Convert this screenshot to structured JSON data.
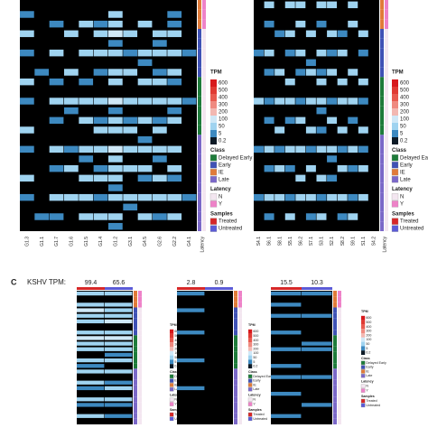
{
  "legend": {
    "tpm_title": "TPM",
    "tpm_ticks": [
      600,
      500,
      400,
      300,
      200,
      100,
      50,
      5,
      0.2
    ],
    "tpm_colors": [
      "#d7191c",
      "#e03a33",
      "#e85a4f",
      "#ef8a80",
      "#f2b8b2",
      "#cfe8f7",
      "#9fd3f0",
      "#3d89c0",
      "#0d1a26"
    ],
    "low_color": "#000000",
    "class_title": "Class",
    "classes": [
      {
        "name": "Delayed Early",
        "color": "#1e7b3a"
      },
      {
        "name": "Early",
        "color": "#3f51b5"
      },
      {
        "name": "IE",
        "color": "#e07b39"
      },
      {
        "name": "Late",
        "color": "#7b68c8"
      }
    ],
    "latency_title": "Latency",
    "latency": [
      {
        "name": "N",
        "color": "#f3e6f0"
      },
      {
        "name": "Y",
        "color": "#ee82c8"
      }
    ],
    "samples_title": "Samples",
    "samples": [
      {
        "name": "Treated",
        "color": "#d62728"
      },
      {
        "name": "Untreated",
        "color": "#5b5bd6"
      }
    ]
  },
  "row_class": [
    "IE",
    "IE",
    "IE",
    "Early",
    "Early",
    "Early",
    "Early",
    "Early",
    "Delayed Early",
    "Delayed Early",
    "Delayed Early",
    "Delayed Early",
    "Delayed Early",
    "Delayed Early",
    "Late",
    "Late",
    "Late",
    "Late",
    "Late",
    "Late",
    "Late",
    "Late",
    "Late",
    "Late"
  ],
  "row_latency": [
    "Y",
    "Y",
    "Y",
    "N",
    "N",
    "N",
    "N",
    "N",
    "N",
    "N",
    "N",
    "N",
    "N",
    "N",
    "N",
    "N",
    "N",
    "N",
    "N",
    "N",
    "N",
    "N",
    "N",
    "N"
  ],
  "panel_c": {
    "label": "C",
    "kshv_label": "KSHV TPM:"
  },
  "chart_data": [
    {
      "type": "heatmap",
      "categories": [
        "G1.3",
        "G1.1",
        "G1.7",
        "G1.6",
        "G1.5",
        "G1.4",
        "G1.2",
        "G3.1",
        "G4.5",
        "G2.6",
        "G2.2",
        "G4.1"
      ],
      "sidebar_label": "Latency",
      "values": [
        [
          0,
          0,
          0,
          0,
          0,
          0,
          0,
          0,
          0,
          0,
          0,
          0
        ],
        [
          5,
          0,
          0,
          0,
          0,
          0,
          50,
          0,
          0,
          0,
          5,
          0
        ],
        [
          0,
          0,
          5,
          0,
          50,
          5,
          50,
          0,
          50,
          0,
          5,
          0
        ],
        [
          50,
          0,
          0,
          50,
          0,
          50,
          100,
          50,
          0,
          50,
          50,
          0
        ],
        [
          0,
          0,
          0,
          0,
          0,
          0,
          5,
          0,
          0,
          5,
          0,
          0
        ],
        [
          5,
          0,
          50,
          0,
          50,
          50,
          50,
          5,
          50,
          50,
          50,
          5
        ],
        [
          0,
          0,
          0,
          0,
          0,
          0,
          0,
          0,
          5,
          0,
          0,
          0
        ],
        [
          0,
          5,
          0,
          50,
          0,
          5,
          50,
          50,
          0,
          5,
          50,
          0
        ],
        [
          50,
          0,
          5,
          0,
          5,
          0,
          50,
          0,
          50,
          50,
          5,
          0
        ],
        [
          0,
          0,
          0,
          0,
          0,
          0,
          0,
          0,
          0,
          0,
          0,
          0
        ],
        [
          5,
          0,
          50,
          50,
          50,
          50,
          100,
          50,
          50,
          50,
          50,
          5
        ],
        [
          0,
          0,
          0,
          5,
          0,
          0,
          5,
          0,
          0,
          0,
          5,
          0
        ],
        [
          0,
          0,
          5,
          0,
          50,
          5,
          50,
          5,
          50,
          5,
          50,
          0
        ],
        [
          50,
          0,
          0,
          0,
          0,
          50,
          50,
          50,
          0,
          50,
          0,
          0
        ],
        [
          0,
          0,
          0,
          0,
          0,
          0,
          0,
          0,
          5,
          0,
          0,
          0
        ],
        [
          5,
          0,
          50,
          5,
          50,
          50,
          100,
          50,
          50,
          50,
          50,
          0
        ],
        [
          0,
          0,
          0,
          0,
          5,
          0,
          50,
          0,
          0,
          5,
          0,
          0
        ],
        [
          0,
          0,
          5,
          50,
          0,
          5,
          50,
          50,
          50,
          0,
          50,
          0
        ],
        [
          50,
          0,
          0,
          0,
          50,
          50,
          50,
          0,
          5,
          50,
          5,
          0
        ],
        [
          0,
          0,
          0,
          0,
          0,
          0,
          5,
          0,
          0,
          0,
          0,
          0
        ],
        [
          5,
          0,
          50,
          50,
          50,
          5,
          50,
          50,
          50,
          50,
          50,
          5
        ],
        [
          0,
          0,
          0,
          0,
          0,
          0,
          0,
          5,
          0,
          0,
          0,
          0
        ],
        [
          0,
          5,
          5,
          0,
          50,
          50,
          50,
          0,
          50,
          5,
          50,
          0
        ],
        [
          0,
          0,
          0,
          0,
          0,
          0,
          5,
          0,
          0,
          0,
          0,
          0
        ]
      ]
    },
    {
      "type": "heatmap",
      "categories": [
        "S4.1",
        "S6.1",
        "S8.1",
        "S5.1",
        "S6.2",
        "S7.1",
        "S3.1",
        "S2.1",
        "S8.2",
        "S9.1",
        "S1.1",
        "S4.2"
      ],
      "sidebar_label": "Latency",
      "values": [
        [
          0,
          50,
          0,
          50,
          50,
          0,
          50,
          50,
          0,
          50,
          0,
          0
        ],
        [
          0,
          0,
          0,
          0,
          0,
          0,
          0,
          0,
          0,
          0,
          0,
          0
        ],
        [
          0,
          5,
          0,
          0,
          50,
          0,
          5,
          0,
          0,
          50,
          0,
          0
        ],
        [
          0,
          0,
          5,
          50,
          0,
          50,
          0,
          50,
          5,
          0,
          50,
          0
        ],
        [
          0,
          0,
          0,
          0,
          0,
          0,
          0,
          0,
          0,
          0,
          0,
          0
        ],
        [
          5,
          50,
          0,
          5,
          50,
          0,
          50,
          5,
          50,
          0,
          5,
          0
        ],
        [
          0,
          0,
          0,
          0,
          0,
          5,
          0,
          0,
          0,
          0,
          0,
          0
        ],
        [
          0,
          5,
          50,
          0,
          5,
          50,
          5,
          50,
          0,
          50,
          0,
          0
        ],
        [
          0,
          0,
          0,
          50,
          0,
          0,
          50,
          0,
          50,
          0,
          50,
          0
        ],
        [
          0,
          0,
          0,
          0,
          0,
          0,
          0,
          0,
          0,
          0,
          0,
          0
        ],
        [
          50,
          5,
          50,
          50,
          5,
          50,
          50,
          5,
          50,
          50,
          5,
          0
        ],
        [
          0,
          0,
          0,
          0,
          0,
          0,
          5,
          0,
          0,
          0,
          0,
          0
        ],
        [
          0,
          5,
          0,
          5,
          50,
          0,
          0,
          50,
          0,
          5,
          0,
          0
        ],
        [
          0,
          0,
          50,
          0,
          0,
          50,
          5,
          0,
          50,
          0,
          50,
          0
        ],
        [
          0,
          0,
          0,
          0,
          0,
          0,
          0,
          0,
          0,
          0,
          0,
          0
        ],
        [
          5,
          50,
          5,
          50,
          50,
          5,
          50,
          50,
          5,
          50,
          5,
          0
        ],
        [
          0,
          0,
          0,
          0,
          0,
          0,
          0,
          5,
          0,
          0,
          0,
          0
        ],
        [
          0,
          5,
          50,
          5,
          0,
          50,
          0,
          0,
          50,
          5,
          50,
          0
        ],
        [
          0,
          0,
          0,
          0,
          50,
          0,
          50,
          5,
          0,
          0,
          0,
          0
        ],
        [
          0,
          0,
          0,
          0,
          0,
          0,
          0,
          0,
          0,
          0,
          0,
          0
        ],
        [
          5,
          50,
          50,
          5,
          50,
          50,
          5,
          50,
          50,
          5,
          50,
          0
        ],
        [
          0,
          0,
          0,
          0,
          0,
          0,
          0,
          0,
          0,
          0,
          0,
          0
        ],
        [
          0,
          5,
          0,
          50,
          0,
          5,
          50,
          0,
          5,
          50,
          0,
          0
        ],
        [
          0,
          0,
          0,
          0,
          0,
          0,
          0,
          0,
          0,
          0,
          0,
          0
        ]
      ]
    },
    {
      "type": "heatmap",
      "kshv_tpm": [
        99.4,
        65.6
      ],
      "samples": [
        "Treated",
        "Untreated"
      ],
      "values": [
        [
          50,
          50
        ],
        [
          0,
          0
        ],
        [
          50,
          50
        ],
        [
          100,
          50
        ],
        [
          50,
          50
        ],
        [
          50,
          100
        ],
        [
          0,
          0
        ],
        [
          50,
          50
        ],
        [
          100,
          100
        ],
        [
          50,
          50
        ],
        [
          50,
          50
        ],
        [
          0,
          5
        ],
        [
          50,
          50
        ],
        [
          5,
          0
        ],
        [
          50,
          50
        ],
        [
          0,
          0
        ],
        [
          50,
          5
        ],
        [
          5,
          50
        ],
        [
          0,
          0
        ],
        [
          50,
          50
        ],
        [
          5,
          5
        ],
        [
          0,
          0
        ],
        [
          50,
          5
        ],
        [
          0,
          0
        ]
      ]
    },
    {
      "type": "heatmap",
      "kshv_tpm": [
        2.8,
        0.9
      ],
      "samples": [
        "Treated",
        "Untreated"
      ],
      "values": [
        [
          5,
          0
        ],
        [
          0,
          0
        ],
        [
          0,
          0
        ],
        [
          5,
          0
        ],
        [
          0,
          0
        ],
        [
          0,
          0
        ],
        [
          0,
          0
        ],
        [
          5,
          0
        ],
        [
          0,
          0
        ],
        [
          0,
          0
        ],
        [
          0,
          0
        ],
        [
          0,
          0
        ],
        [
          5,
          0
        ],
        [
          0,
          0
        ],
        [
          0,
          0
        ],
        [
          0,
          0
        ],
        [
          0,
          0
        ],
        [
          5,
          0
        ],
        [
          0,
          0
        ],
        [
          0,
          0
        ],
        [
          0,
          0
        ],
        [
          0,
          0
        ],
        [
          0,
          0
        ],
        [
          0,
          0
        ]
      ]
    },
    {
      "type": "heatmap",
      "kshv_tpm": [
        15.5,
        10.3
      ],
      "samples": [
        "Treated",
        "Untreated"
      ],
      "values": [
        [
          5,
          5
        ],
        [
          0,
          0
        ],
        [
          5,
          0
        ],
        [
          0,
          0
        ],
        [
          5,
          5
        ],
        [
          0,
          0
        ],
        [
          0,
          0
        ],
        [
          5,
          0
        ],
        [
          0,
          0
        ],
        [
          0,
          5
        ],
        [
          5,
          5
        ],
        [
          0,
          0
        ],
        [
          0,
          0
        ],
        [
          5,
          0
        ],
        [
          0,
          0
        ],
        [
          5,
          5
        ],
        [
          0,
          0
        ],
        [
          0,
          0
        ],
        [
          5,
          0
        ],
        [
          0,
          0
        ],
        [
          0,
          5
        ],
        [
          0,
          0
        ],
        [
          5,
          0
        ],
        [
          0,
          0
        ]
      ]
    }
  ]
}
